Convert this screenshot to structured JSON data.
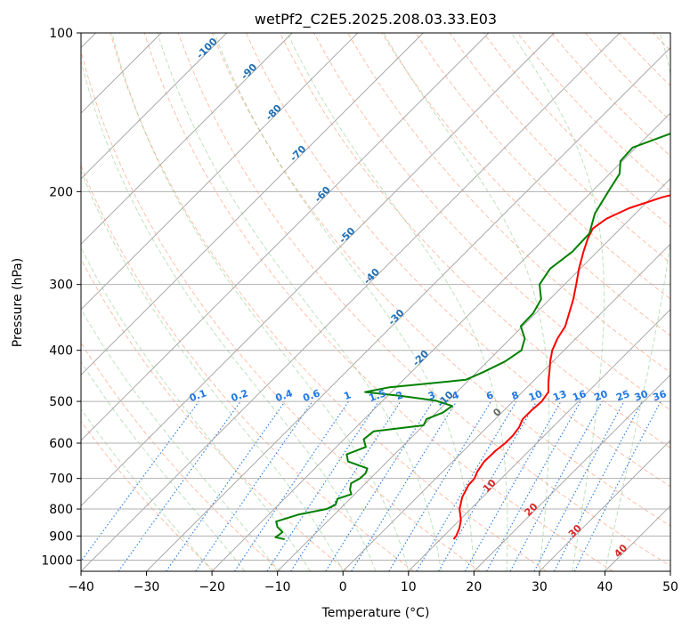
{
  "chart_data": {
    "type": "line",
    "title": "wetPf2_C2E5.2025.208.03.33.E03",
    "xlabel": "Temperature (°C)",
    "ylabel": "Pressure (hPa)",
    "xlim": [
      -40,
      50
    ],
    "ylim": [
      1050,
      100
    ],
    "y_scale": "log",
    "grid": true,
    "x_ticks": [
      -40,
      -30,
      -20,
      -10,
      0,
      10,
      20,
      30,
      40,
      50
    ],
    "x_tick_labels": [
      "−40",
      "−30",
      "−20",
      "−10",
      "0",
      "10",
      "20",
      "30",
      "40",
      "50"
    ],
    "y_ticks": [
      100,
      200,
      300,
      400,
      500,
      600,
      700,
      800,
      900,
      1000
    ],
    "y_tick_labels": [
      "100",
      "200",
      "300",
      "400",
      "500",
      "600",
      "700",
      "800",
      "900",
      "1000"
    ],
    "colors": {
      "temperature": "#ff0000",
      "dewpoint": "#008000",
      "isotherm": "#a0a0a0",
      "dry_adiabat": "#ff7f50",
      "moist_adiabat": "#5fb85f",
      "mixing_ratio": "#1f77e4",
      "iso_label_blue": "#1f6fb4",
      "iso_label_red": "#d62728"
    },
    "series": [
      {
        "key": "temperature",
        "p": [
          913,
          900,
          870,
          840,
          800,
          760,
          720,
          700,
          680,
          650,
          620,
          600,
          580,
          560,
          540,
          520,
          500,
          480,
          460,
          440,
          420,
          400,
          380,
          360,
          340,
          320,
          300,
          280,
          260,
          245,
          235,
          225,
          215,
          205,
          195,
          185,
          175,
          165,
          155,
          145,
          135,
          125,
          115,
          108,
          100
        ],
        "t": [
          12.0,
          11.9,
          11.2,
          10.2,
          8.3,
          6.9,
          6.0,
          5.9,
          5.3,
          4.8,
          4.9,
          5.2,
          5.2,
          4.9,
          4.2,
          4.2,
          4.4,
          4.0,
          2.5,
          1.1,
          -0.4,
          -1.8,
          -2.8,
          -3.5,
          -4.9,
          -6.4,
          -8.2,
          -10.2,
          -12.1,
          -13.5,
          -14.2,
          -13.6,
          -11.8,
          -8.4,
          -3.2,
          2.8,
          6.0,
          9.2,
          13.8,
          16.4,
          17.6,
          18.2,
          22.1,
          25.0,
          28.0
        ]
      },
      {
        "key": "dewpoint",
        "p": [
          913,
          905,
          885,
          865,
          845,
          820,
          800,
          785,
          765,
          750,
          735,
          715,
          700,
          685,
          670,
          650,
          630,
          610,
          590,
          570,
          555,
          540,
          525,
          510,
          498,
          488,
          480,
          470,
          455,
          440,
          420,
          400,
          380,
          360,
          340,
          320,
          300,
          280,
          260,
          240,
          220,
          200,
          185,
          175,
          165,
          155,
          145,
          135,
          125,
          115,
          108,
          100
        ],
        "t": [
          -13.8,
          -15.5,
          -15.2,
          -16.8,
          -17.8,
          -15.5,
          -12.0,
          -11.3,
          -11.9,
          -10.5,
          -11.4,
          -12.2,
          -11.6,
          -11.5,
          -12.0,
          -16.0,
          -17.3,
          -15.5,
          -17.0,
          -16.7,
          -10.0,
          -10.5,
          -9.0,
          -8.6,
          -12.0,
          -18.0,
          -24.0,
          -21.0,
          -10.5,
          -9.0,
          -7.3,
          -6.5,
          -7.8,
          -10.3,
          -10.4,
          -11.3,
          -13.8,
          -14.6,
          -13.8,
          -14.0,
          -16.2,
          -17.5,
          -18.5,
          -20.3,
          -20.5,
          -16.8,
          -15.0,
          -16.8,
          -13.6,
          -6.2,
          -6.3,
          -3.2
        ]
      }
    ],
    "isotherm_labels": [
      "-100",
      "-90",
      "-80",
      "-70",
      "-60",
      "-50",
      "-40",
      "-30",
      "-20",
      "-10",
      "0",
      "10",
      "20",
      "30",
      "40"
    ],
    "isotherm_label_values": [
      -100,
      -90,
      -80,
      -70,
      -60,
      -50,
      -40,
      -30,
      -20,
      -10,
      0,
      10,
      20,
      30,
      40
    ],
    "mixing_ratio_labels": [
      "0.1",
      "0.2",
      "0.4",
      "0.6",
      "1",
      "1.5",
      "2",
      "3",
      "4",
      "6",
      "8",
      "10",
      "13",
      "16",
      "20",
      "25",
      "30",
      "36"
    ],
    "mixing_ratio_values": [
      0.1,
      0.2,
      0.4,
      0.6,
      1,
      1.5,
      2,
      3,
      4,
      6,
      8,
      10,
      13,
      16,
      20,
      25,
      30,
      36
    ]
  }
}
